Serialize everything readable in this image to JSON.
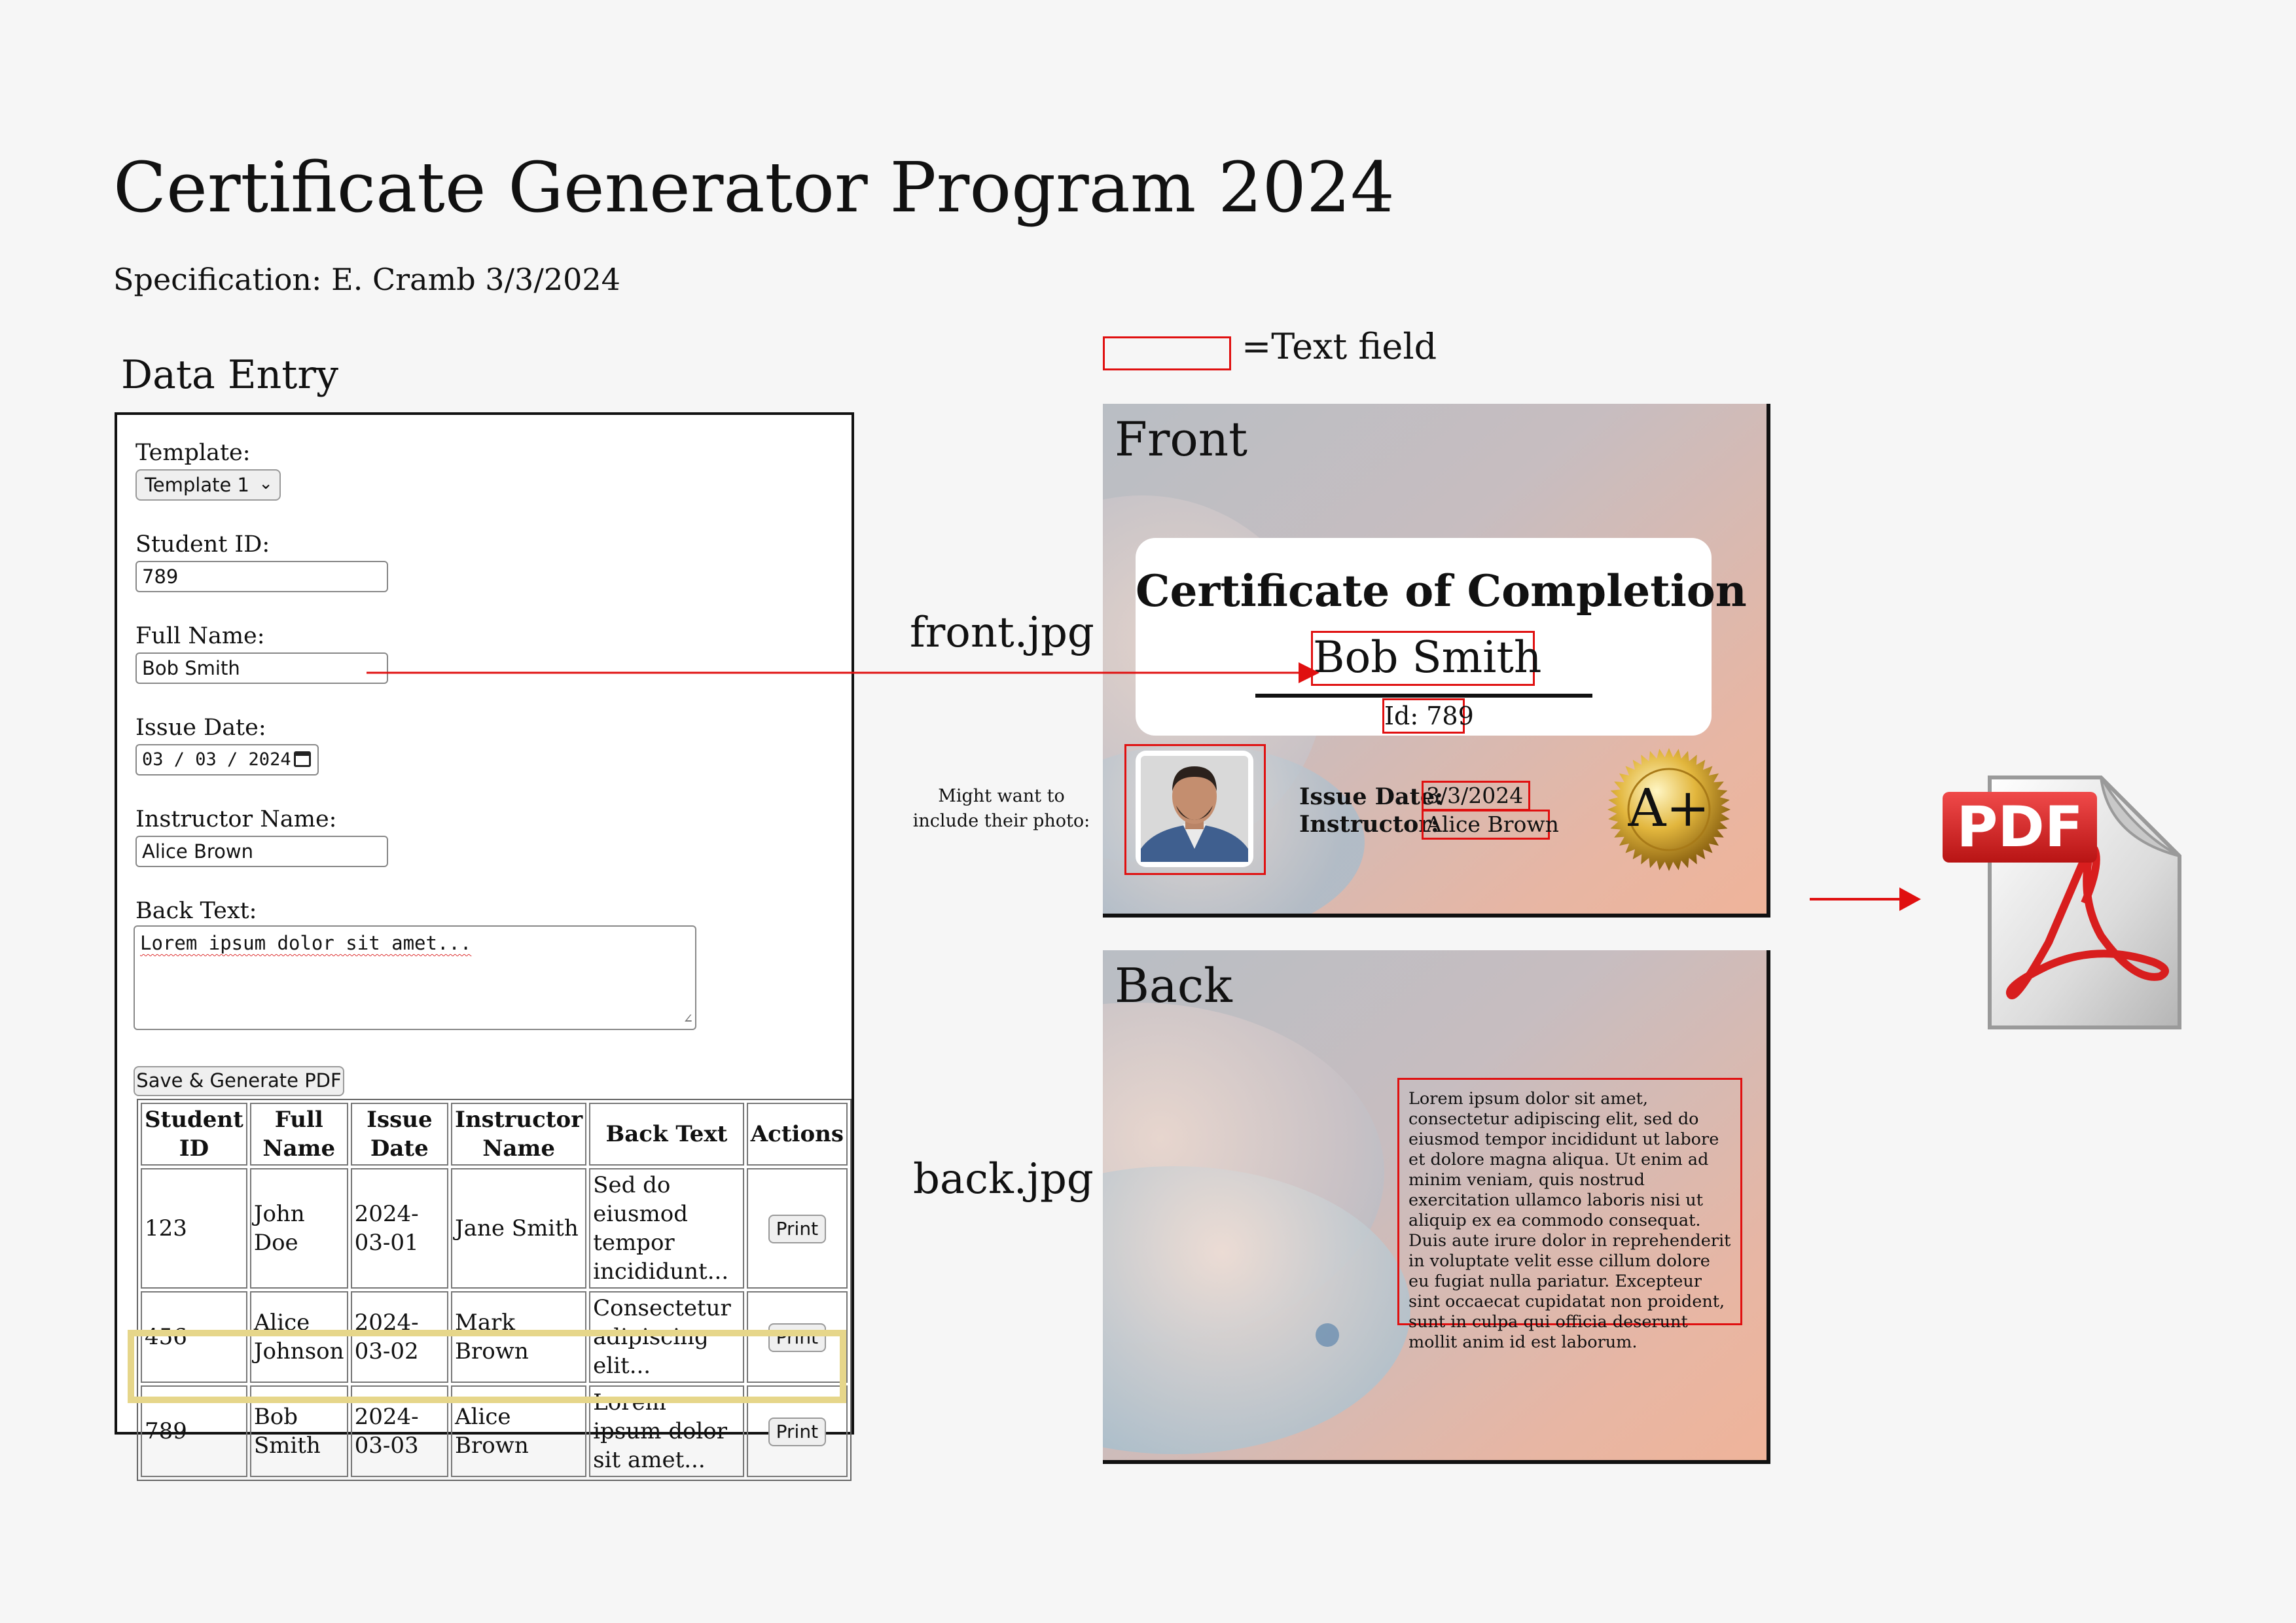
{
  "page": {
    "title": "Certificate Generator Program 2024",
    "specification": "Specification: E. Cramb 3/3/2024"
  },
  "data_entry": {
    "heading": "Data Entry",
    "template_label": "Template:",
    "template_value": "Template 1",
    "student_id_label": "Student ID:",
    "student_id_value": "789",
    "full_name_label": "Full Name:",
    "full_name_value": "Bob Smith",
    "issue_date_label": "Issue Date:",
    "issue_date_value": "03 / 03 / 2024",
    "instructor_label": "Instructor Name:",
    "instructor_value": "Alice Brown",
    "back_text_label": "Back Text:",
    "back_text_value": "Lorem ipsum dolor sit amet...",
    "save_button": "Save & Generate PDF",
    "table": {
      "headers": [
        "Student ID",
        "Full Name",
        "Issue Date",
        "Instructor Name",
        "Back Text",
        "Actions"
      ],
      "rows": [
        {
          "id": "123",
          "name": "John Doe",
          "date": "2024-03-01",
          "instructor": "Jane Smith",
          "back": "Sed do eiusmod tempor incididunt...",
          "action": "Print"
        },
        {
          "id": "456",
          "name": "Alice Johnson",
          "date": "2024-03-02",
          "instructor": "Mark Brown",
          "back": "Consectetur adipiscing elit...",
          "action": "Print"
        },
        {
          "id": "789",
          "name": "Bob Smith",
          "date": "2024-03-03",
          "instructor": "Alice Brown",
          "back": "Lorem ipsum dolor sit amet...",
          "action": "Print"
        }
      ]
    }
  },
  "legend": {
    "text": "=Text field"
  },
  "labels": {
    "front_file": "front.jpg",
    "back_file": "back.jpg",
    "photo_note": "Might want to include their photo:"
  },
  "front_card": {
    "heading": "Front",
    "cert_title": "Certificate of Completion",
    "name": "Bob Smith",
    "id_text": "Id: 789",
    "issue_date_label": "Issue Date:",
    "issue_date_value": "3/3/2024",
    "instructor_label": "Instructor:",
    "instructor_value": "Alice Brown",
    "seal_text": "A+"
  },
  "back_card": {
    "heading": "Back",
    "text": "Lorem ipsum dolor sit amet, consectetur adipiscing elit, sed do eiusmod tempor incididunt ut labore et dolore magna aliqua. Ut enim ad minim veniam, quis nostrud exercitation ullamco laboris nisi ut aliquip ex ea commodo consequat. Duis aute irure dolor in reprehenderit in voluptate velit esse cillum dolore eu fugiat nulla pariatur. Excepteur sint occaecat cupidatat non proident, sunt in culpa qui officia deserunt mollit anim id est laborum."
  },
  "pdf_icon": {
    "text": "PDF"
  },
  "colors": {
    "text_field_border": "#e01010",
    "highlight": "#e6d68a",
    "pdf_red": "#d81e1e"
  }
}
